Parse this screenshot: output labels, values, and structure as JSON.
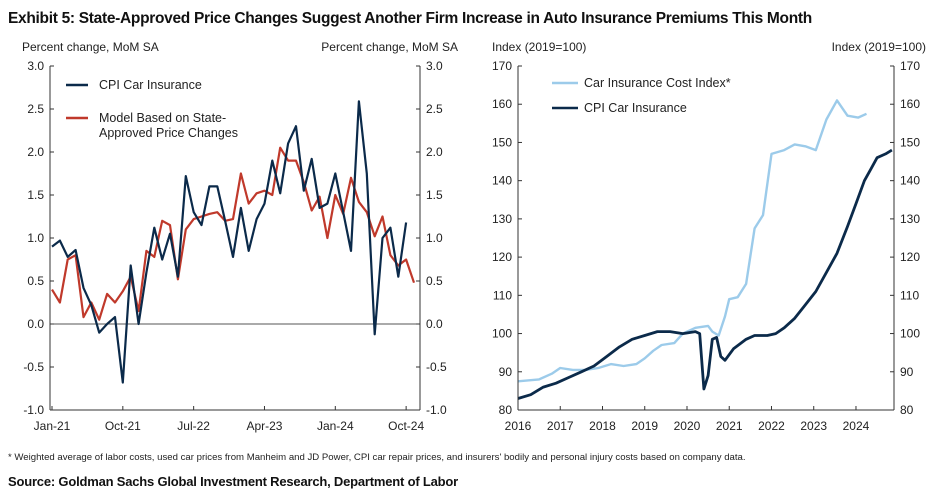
{
  "title": "Exhibit 5: State-Approved Price Changes Suggest Another Firm Increase in Auto Insurance Premiums This Month",
  "footnote": "* Weighted average of labor costs, used car prices from Manheim and JD Power, CPI car repair prices, and insurers' bodily and personal injury costs based on company data.",
  "source": "Source: Goldman Sachs Global Investment Research, Department of Labor",
  "colors": {
    "navy": "#0b2a4a",
    "red": "#c0392b",
    "lightblue": "#9ccbea",
    "axis": "#333333"
  },
  "chart_data": [
    {
      "type": "line",
      "ylabel_left": "Percent change, MoM SA",
      "ylabel_right": "Percent change, MoM SA",
      "ylim": [
        -1.0,
        3.0
      ],
      "yticks": [
        "3.0",
        "2.5",
        "2.0",
        "1.5",
        "1.0",
        "0.5",
        "0.0",
        "-0.5",
        "-1.0"
      ],
      "xticks": [
        "Jan-21",
        "Oct-21",
        "Jul-22",
        "Apr-23",
        "Jan-24",
        "Oct-24"
      ],
      "xtick_index": [
        0,
        9,
        18,
        27,
        36,
        45
      ],
      "legend_position": "top-left",
      "series": [
        {
          "name": "CPI Car Insurance",
          "color": "#0b2a4a",
          "values": [
            0.9,
            0.97,
            0.78,
            0.86,
            0.42,
            0.22,
            -0.1,
            0.0,
            0.08,
            -0.68,
            0.68,
            0.0,
            0.6,
            1.12,
            0.75,
            1.05,
            0.55,
            1.72,
            1.3,
            1.15,
            1.6,
            1.6,
            1.2,
            0.78,
            1.35,
            0.85,
            1.22,
            1.4,
            1.9,
            1.52,
            2.1,
            2.3,
            1.55,
            1.92,
            1.35,
            1.4,
            1.75,
            1.3,
            0.85,
            2.59,
            1.75,
            -0.12,
            1.0,
            1.12,
            0.55,
            1.18
          ]
        },
        {
          "name": "Model Based on State-Approved Price Changes",
          "color": "#c0392b",
          "values": [
            0.4,
            0.25,
            0.75,
            0.8,
            0.08,
            0.25,
            0.05,
            0.35,
            0.25,
            0.38,
            0.55,
            0.15,
            0.85,
            0.78,
            1.2,
            1.15,
            0.52,
            1.1,
            1.22,
            1.25,
            1.28,
            1.3,
            1.2,
            1.22,
            1.75,
            1.4,
            1.52,
            1.55,
            1.5,
            2.05,
            1.9,
            1.9,
            1.65,
            1.32,
            1.48,
            1.0,
            1.5,
            1.28,
            1.7,
            1.42,
            1.3,
            1.02,
            1.25,
            0.8,
            0.68,
            0.75,
            0.48
          ]
        }
      ]
    },
    {
      "type": "line",
      "ylabel_left": "Index (2019=100)",
      "ylabel_right": "Index (2019=100)",
      "ylim": [
        80,
        170
      ],
      "yticks": [
        "170",
        "160",
        "150",
        "140",
        "130",
        "120",
        "110",
        "100",
        "90",
        "80"
      ],
      "xticks": [
        "2016",
        "2017",
        "2018",
        "2019",
        "2020",
        "2021",
        "2022",
        "2023",
        "2024"
      ],
      "x_start": 2016,
      "x_end": 2024.9,
      "legend_position": "top-left",
      "series": [
        {
          "name": "Car Insurance Cost Index*",
          "color": "#9ccbea",
          "points": [
            [
              2016.0,
              87.5
            ],
            [
              2016.5,
              88.0
            ],
            [
              2016.8,
              89.5
            ],
            [
              2017.0,
              91.0
            ],
            [
              2017.3,
              90.5
            ],
            [
              2017.6,
              90.5
            ],
            [
              2017.9,
              91.0
            ],
            [
              2018.2,
              92.0
            ],
            [
              2018.5,
              91.5
            ],
            [
              2018.8,
              92.0
            ],
            [
              2019.0,
              93.5
            ],
            [
              2019.2,
              95.5
            ],
            [
              2019.4,
              97.0
            ],
            [
              2019.7,
              97.5
            ],
            [
              2019.9,
              100.0
            ],
            [
              2020.2,
              101.5
            ],
            [
              2020.5,
              102.0
            ],
            [
              2020.6,
              100.5
            ],
            [
              2020.75,
              99.5
            ],
            [
              2020.9,
              104.5
            ],
            [
              2021.0,
              109.0
            ],
            [
              2021.2,
              109.5
            ],
            [
              2021.4,
              113.0
            ],
            [
              2021.6,
              127.5
            ],
            [
              2021.8,
              131.0
            ],
            [
              2022.0,
              147.0
            ],
            [
              2022.3,
              148.0
            ],
            [
              2022.55,
              149.5
            ],
            [
              2022.8,
              149.0
            ],
            [
              2023.05,
              148.0
            ],
            [
              2023.3,
              156.0
            ],
            [
              2023.55,
              161.0
            ],
            [
              2023.8,
              157.0
            ],
            [
              2024.05,
              156.5
            ],
            [
              2024.25,
              157.5
            ]
          ]
        },
        {
          "name": "CPI Car Insurance",
          "color": "#0b2a4a",
          "points": [
            [
              2016.0,
              83.0
            ],
            [
              2016.3,
              84.0
            ],
            [
              2016.6,
              86.0
            ],
            [
              2016.9,
              87.0
            ],
            [
              2017.2,
              88.5
            ],
            [
              2017.5,
              90.0
            ],
            [
              2017.8,
              91.5
            ],
            [
              2018.1,
              94.0
            ],
            [
              2018.4,
              96.5
            ],
            [
              2018.7,
              98.5
            ],
            [
              2019.0,
              99.5
            ],
            [
              2019.3,
              100.5
            ],
            [
              2019.6,
              100.5
            ],
            [
              2019.9,
              100.0
            ],
            [
              2020.2,
              100.5
            ],
            [
              2020.3,
              100.0
            ],
            [
              2020.4,
              85.5
            ],
            [
              2020.5,
              89.0
            ],
            [
              2020.6,
              98.5
            ],
            [
              2020.7,
              99.0
            ],
            [
              2020.8,
              94.0
            ],
            [
              2020.9,
              93.0
            ],
            [
              2021.1,
              96.0
            ],
            [
              2021.4,
              98.5
            ],
            [
              2021.6,
              99.5
            ],
            [
              2021.9,
              99.5
            ],
            [
              2022.1,
              100.0
            ],
            [
              2022.3,
              101.5
            ],
            [
              2022.55,
              104.0
            ],
            [
              2022.8,
              107.5
            ],
            [
              2023.05,
              111.0
            ],
            [
              2023.3,
              116.0
            ],
            [
              2023.55,
              121.0
            ],
            [
              2023.8,
              128.0
            ],
            [
              2024.0,
              134.0
            ],
            [
              2024.2,
              140.0
            ],
            [
              2024.35,
              143.0
            ],
            [
              2024.5,
              146.0
            ],
            [
              2024.7,
              147.0
            ],
            [
              2024.85,
              148.0
            ]
          ]
        }
      ]
    }
  ]
}
